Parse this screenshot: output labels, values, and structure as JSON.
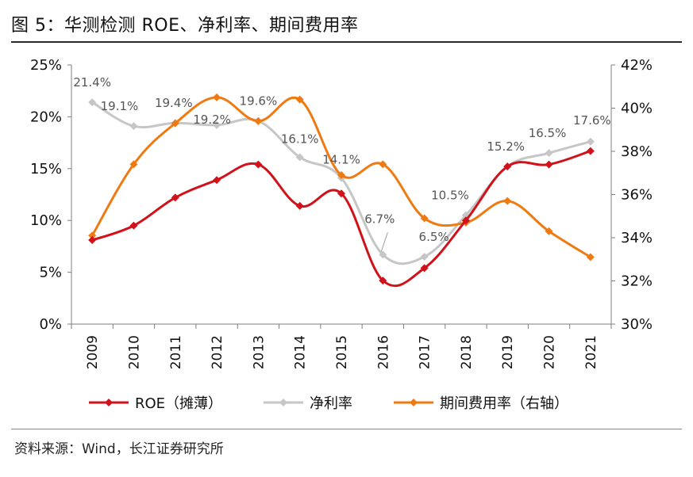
{
  "title": "图  5：华测检测 ROE、净利率、期间费用率",
  "source": "资料来源：Wind，长江证券研究所",
  "colors": {
    "roe": "#d0121a",
    "net_margin": "#c6c6c6",
    "expense_ratio": "#f07a12"
  },
  "chart_data": {
    "type": "line",
    "categories": [
      "2009",
      "2010",
      "2011",
      "2012",
      "2013",
      "2014",
      "2015",
      "2016",
      "2017",
      "2018",
      "2019",
      "2020",
      "2021"
    ],
    "left_axis": {
      "ylim": [
        0,
        25
      ],
      "ticks": [
        "0%",
        "5%",
        "10%",
        "15%",
        "20%",
        "25%"
      ]
    },
    "right_axis": {
      "ylim": [
        30,
        42
      ],
      "ticks": [
        "30%",
        "32%",
        "34%",
        "36%",
        "38%",
        "40%",
        "42%"
      ]
    },
    "legend_position": "bottom",
    "grid": false,
    "series": [
      {
        "name": "ROE（摊薄）",
        "axis": "left",
        "color": "#d0121a",
        "values": [
          8.1,
          9.5,
          12.2,
          13.9,
          15.4,
          11.4,
          12.6,
          4.2,
          5.4,
          10.0,
          15.2,
          15.4,
          16.7
        ]
      },
      {
        "name": "净利率",
        "axis": "left",
        "color": "#c6c6c6",
        "values": [
          21.4,
          19.1,
          19.4,
          19.2,
          19.6,
          16.1,
          14.1,
          6.7,
          6.5,
          10.5,
          15.2,
          16.5,
          17.6
        ],
        "labels": [
          "21.4%",
          "19.1%",
          "19.4%",
          "19.2%",
          "19.6%",
          "16.1%",
          "14.1%",
          "6.7%",
          "6.5%",
          "10.5%",
          "15.2%",
          "16.5%",
          "17.6%"
        ]
      },
      {
        "name": "期间费用率（右轴）",
        "axis": "right",
        "color": "#f07a12",
        "values": [
          34.1,
          37.4,
          39.3,
          40.5,
          39.4,
          40.4,
          36.9,
          37.4,
          34.9,
          34.7,
          35.7,
          34.3,
          33.1
        ]
      }
    ]
  }
}
